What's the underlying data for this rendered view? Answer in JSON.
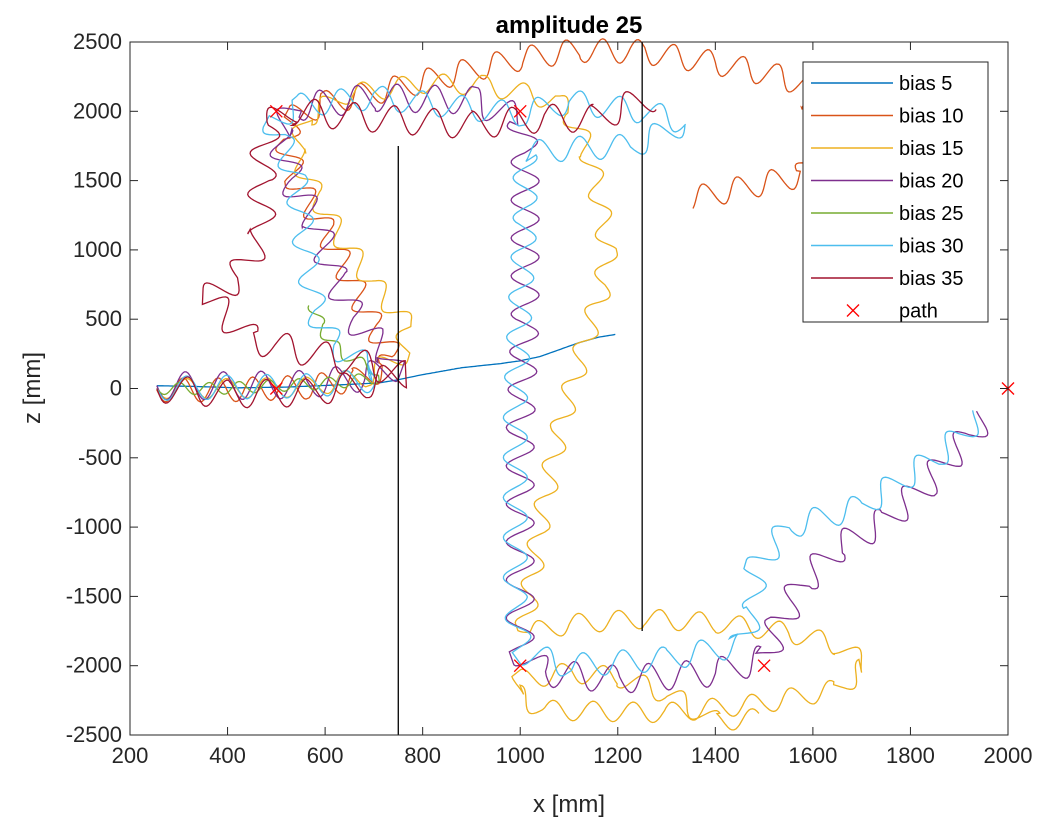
{
  "chart_data": {
    "type": "line",
    "title": "amplitude 25",
    "xlabel": "x [mm]",
    "ylabel": "z [mm]",
    "xlim": [
      200,
      2000
    ],
    "ylim": [
      -2500,
      2500
    ],
    "xticks": [
      200,
      400,
      600,
      800,
      1000,
      1200,
      1400,
      1600,
      1800,
      2000
    ],
    "yticks": [
      -2500,
      -2000,
      -1500,
      -1000,
      -500,
      0,
      500,
      1000,
      1500,
      2000,
      2500
    ],
    "grid": false,
    "legend_position": "top-right",
    "series": [
      {
        "name": "bias 5",
        "color": "#0072BD",
        "wiggle": null,
        "points": [
          [
            255,
            20
          ],
          [
            330,
            15
          ],
          [
            420,
            5
          ],
          [
            520,
            10
          ],
          [
            620,
            25
          ],
          [
            710,
            40
          ],
          [
            745,
            60
          ],
          [
            800,
            100
          ],
          [
            880,
            150
          ],
          [
            960,
            180
          ],
          [
            1000,
            200
          ],
          [
            1040,
            230
          ],
          [
            1080,
            280
          ],
          [
            1120,
            330
          ],
          [
            1160,
            370
          ],
          [
            1195,
            390
          ]
        ]
      },
      {
        "name": "bias 10",
        "color": "#D95319",
        "wiggle": {
          "amp": 12,
          "period": 35
        },
        "points": [
          [
            255,
            -10
          ],
          [
            400,
            -10
          ],
          [
            560,
            10
          ],
          [
            660,
            60
          ],
          [
            720,
            140
          ],
          [
            740,
            220
          ],
          [
            700,
            450
          ],
          [
            650,
            800
          ],
          [
            600,
            1150
          ],
          [
            540,
            1500
          ],
          [
            520,
            1780
          ],
          [
            530,
            1950
          ],
          [
            600,
            2060
          ],
          [
            760,
            2180
          ],
          [
            900,
            2300
          ],
          [
            1000,
            2380
          ],
          [
            1120,
            2440
          ],
          [
            1250,
            2430
          ],
          [
            1400,
            2350
          ],
          [
            1520,
            2260
          ],
          [
            1580,
            2200
          ],
          [
            1600,
            2050
          ],
          [
            1610,
            1700
          ],
          [
            1580,
            1540
          ],
          [
            1460,
            1450
          ],
          [
            1350,
            1370
          ]
        ]
      },
      {
        "name": "bias 15",
        "color": "#EDB120",
        "wiggle": {
          "amp": 10,
          "period": 40
        },
        "points": [
          [
            255,
            0
          ],
          [
            400,
            0
          ],
          [
            560,
            10
          ],
          [
            680,
            80
          ],
          [
            760,
            250
          ],
          [
            770,
            450
          ],
          [
            700,
            750
          ],
          [
            630,
            1100
          ],
          [
            580,
            1400
          ],
          [
            540,
            1700
          ],
          [
            560,
            1950
          ],
          [
            640,
            2120
          ],
          [
            800,
            2200
          ],
          [
            920,
            2190
          ],
          [
            1010,
            2130
          ],
          [
            1070,
            2080
          ],
          [
            1100,
            2000
          ],
          [
            1140,
            1700
          ],
          [
            1160,
            1400
          ],
          [
            1180,
            1000
          ],
          [
            1170,
            750
          ],
          [
            1130,
            300
          ],
          [
            1080,
            -300
          ],
          [
            1040,
            -1000
          ],
          [
            1010,
            -1700
          ],
          [
            1020,
            -1760
          ],
          [
            1100,
            -1700
          ],
          [
            1250,
            -1660
          ],
          [
            1400,
            -1690
          ],
          [
            1550,
            -1760
          ],
          [
            1650,
            -1850
          ],
          [
            1710,
            -2000
          ],
          [
            1650,
            -2170
          ],
          [
            1500,
            -2270
          ],
          [
            1300,
            -2340
          ],
          [
            1050,
            -2320
          ],
          [
            990,
            -2200
          ],
          [
            1000,
            -2100
          ],
          [
            1100,
            -2050
          ],
          [
            1200,
            -2080
          ],
          [
            1300,
            -2200
          ],
          [
            1400,
            -2400
          ],
          [
            1490,
            -2380
          ]
        ]
      },
      {
        "name": "bias 20",
        "color": "#7E2F8E",
        "wiggle": {
          "amp": 14,
          "period": 38
        },
        "points": [
          [
            255,
            20
          ],
          [
            400,
            20
          ],
          [
            560,
            30
          ],
          [
            680,
            80
          ],
          [
            740,
            150
          ],
          [
            730,
            250
          ],
          [
            700,
            350
          ],
          [
            660,
            500
          ],
          [
            620,
            800
          ],
          [
            580,
            1200
          ],
          [
            530,
            1500
          ],
          [
            505,
            1850
          ],
          [
            540,
            2030
          ],
          [
            700,
            2100
          ],
          [
            900,
            2080
          ],
          [
            960,
            2000
          ],
          [
            1000,
            1950
          ],
          [
            1010,
            1700
          ],
          [
            1010,
            1000
          ],
          [
            1010,
            500
          ],
          [
            1000,
            -300
          ],
          [
            1000,
            -1000
          ],
          [
            1000,
            -1700
          ],
          [
            1000,
            -1900
          ],
          [
            1050,
            -2050
          ],
          [
            1200,
            -2100
          ],
          [
            1400,
            -2050
          ],
          [
            1500,
            -1950
          ],
          [
            1530,
            -1700
          ],
          [
            1580,
            -1400
          ],
          [
            1650,
            -1150
          ],
          [
            1750,
            -950
          ],
          [
            1830,
            -700
          ],
          [
            1880,
            -500
          ],
          [
            1920,
            -350
          ],
          [
            1950,
            -200
          ]
        ]
      },
      {
        "name": "bias 25",
        "color": "#77AC30",
        "wiggle": {
          "amp": 6,
          "period": 30
        },
        "points": [
          [
            255,
            0
          ],
          [
            380,
            0
          ],
          [
            500,
            20
          ],
          [
            620,
            40
          ],
          [
            710,
            80
          ],
          [
            700,
            140
          ],
          [
            660,
            200
          ],
          [
            620,
            300
          ],
          [
            590,
            450
          ],
          [
            575,
            610
          ]
        ]
      },
      {
        "name": "bias 30",
        "color": "#4DBEEE",
        "wiggle": {
          "amp": 12,
          "period": 40
        },
        "points": [
          [
            255,
            0
          ],
          [
            400,
            10
          ],
          [
            560,
            20
          ],
          [
            700,
            60
          ],
          [
            710,
            130
          ],
          [
            680,
            180
          ],
          [
            620,
            300
          ],
          [
            580,
            550
          ],
          [
            560,
            1000
          ],
          [
            540,
            1500
          ],
          [
            510,
            1800
          ],
          [
            490,
            1920
          ],
          [
            540,
            2040
          ],
          [
            700,
            2100
          ],
          [
            900,
            2020
          ],
          [
            1000,
            1980
          ],
          [
            1100,
            2070
          ],
          [
            1250,
            2000
          ],
          [
            1340,
            1920
          ],
          [
            1230,
            1750
          ],
          [
            1100,
            1730
          ],
          [
            1010,
            1700
          ],
          [
            1010,
            1200
          ],
          [
            1000,
            600
          ],
          [
            990,
            -100
          ],
          [
            990,
            -800
          ],
          [
            990,
            -1500
          ],
          [
            1000,
            -1900
          ],
          [
            1100,
            -2000
          ],
          [
            1300,
            -1950
          ],
          [
            1450,
            -1850
          ],
          [
            1480,
            -1600
          ],
          [
            1480,
            -1300
          ],
          [
            1550,
            -1000
          ],
          [
            1700,
            -850
          ],
          [
            1850,
            -500
          ],
          [
            1900,
            -350
          ],
          [
            1940,
            -200
          ]
        ]
      },
      {
        "name": "bias 35",
        "color": "#A2142F",
        "wiggle": {
          "amp": 14,
          "period": 40
        },
        "points": [
          [
            255,
            0
          ],
          [
            400,
            -40
          ],
          [
            560,
            -30
          ],
          [
            680,
            30
          ],
          [
            760,
            100
          ],
          [
            700,
            160
          ],
          [
            580,
            250
          ],
          [
            450,
            350
          ],
          [
            360,
            650
          ],
          [
            420,
            800
          ],
          [
            470,
            1100
          ],
          [
            470,
            1500
          ],
          [
            480,
            1900
          ],
          [
            530,
            2000
          ],
          [
            700,
            1950
          ],
          [
            900,
            1900
          ],
          [
            1050,
            1950
          ],
          [
            1150,
            1950
          ],
          [
            1230,
            2050
          ],
          [
            1270,
            2100
          ]
        ]
      },
      {
        "name": "path",
        "color": "#FF0000",
        "marker": "x",
        "points": [
          [
            500,
            2000
          ],
          [
            1000,
            2000
          ],
          [
            500,
            0
          ],
          [
            1000,
            -2000
          ],
          [
            1500,
            -2000
          ],
          [
            2000,
            0
          ]
        ]
      }
    ],
    "reference_lines": [
      {
        "x": 750,
        "y0": -2500,
        "y1": 1750,
        "color": "#000000"
      },
      {
        "x": 1250,
        "y0": -1750,
        "y1": 2500,
        "color": "#000000"
      }
    ]
  }
}
